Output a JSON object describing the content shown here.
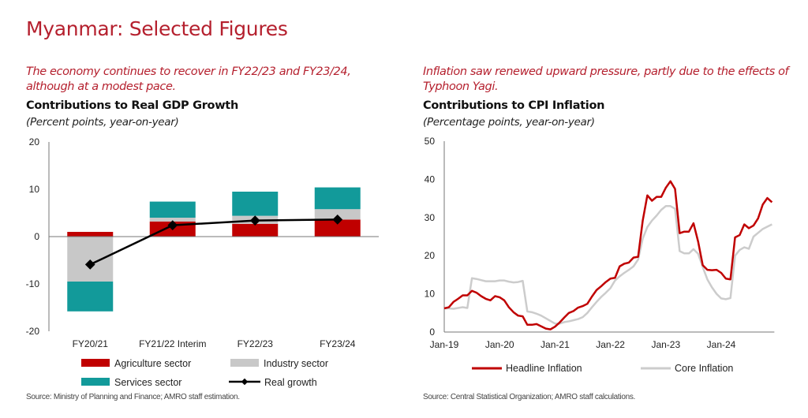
{
  "page": {
    "title": "Myanmar: Selected Figures",
    "left_lead": [
      "The economy continues to recover in FY22/23 and FY23/24,",
      "although at a modest pace."
    ],
    "right_lead": [
      "Inflation saw renewed upward pressure, partly due to the effects of",
      "Typhoon Yagi."
    ]
  },
  "colors": {
    "agriculture": "#c00000",
    "industry": "#c8c8c8",
    "services": "#129a9a",
    "real_growth": "#000000",
    "headline": "#c00000",
    "core": "#cccccc",
    "accent": "#b5202e"
  },
  "chart_data": [
    {
      "type": "bar",
      "stacked": true,
      "title": "Contributions to Real GDP Growth",
      "subtitle": "(Percent points, year-on-year)",
      "source": "Source: Ministry of Planning and Finance; AMRO staff estimation.",
      "categories": [
        "FY20/21",
        "FY21/22 Interim",
        "FY22/23",
        "FY23/24"
      ],
      "ylim": [
        -20,
        20
      ],
      "yticks": [
        20,
        10,
        0,
        -10,
        -20
      ],
      "grid": false,
      "legend_position": "bottom",
      "series": [
        {
          "name": "Agriculture sector",
          "type": "bar",
          "values": [
            1.0,
            3.2,
            2.7,
            3.6
          ]
        },
        {
          "name": "Industry sector",
          "type": "bar",
          "values": [
            -9.5,
            0.8,
            1.7,
            2.2
          ]
        },
        {
          "name": "Services sector",
          "type": "bar",
          "values": [
            -6.3,
            3.4,
            5.1,
            4.6
          ]
        },
        {
          "name": "Real growth",
          "type": "line",
          "values": [
            -5.9,
            2.4,
            3.4,
            3.6
          ]
        }
      ]
    },
    {
      "type": "line",
      "title": "Contributions to CPI Inflation",
      "subtitle": "(Percentage points, year-on-year)",
      "source": "Source: Central Statistical Organization; AMRO staff calculations.",
      "x_start": "Jan-19",
      "x_end": "Dec-24",
      "x_frequency": "monthly",
      "xticks": [
        "Jan-19",
        "Jan-20",
        "Jan-21",
        "Jan-22",
        "Jan-23",
        "Jan-24"
      ],
      "ylim": [
        0,
        50
      ],
      "yticks": [
        50,
        40,
        30,
        20,
        10,
        0
      ],
      "grid": false,
      "legend_position": "bottom",
      "series": [
        {
          "name": "Headline Inflation",
          "values": [
            6.2,
            6.5,
            7.9,
            8.7,
            9.6,
            9.6,
            10.8,
            10.3,
            9.4,
            8.7,
            8.3,
            9.4,
            9.1,
            8.3,
            6.5,
            5.2,
            4.3,
            4.1,
            1.9,
            1.9,
            2.1,
            1.5,
            0.9,
            0.7,
            1.4,
            2.5,
            3.8,
            5.0,
            5.5,
            6.4,
            6.8,
            7.4,
            9.3,
            11.0,
            12.0,
            13.1,
            14.0,
            14.2,
            17.2,
            17.9,
            18.2,
            19.5,
            19.7,
            29.2,
            35.8,
            34.4,
            35.4,
            35.4,
            37.8,
            39.5,
            37.5,
            25.9,
            26.3,
            26.3,
            28.5,
            23.7,
            17.5,
            16.3,
            16.2,
            16.3,
            15.5,
            14.0,
            13.8,
            24.8,
            25.4,
            28.2,
            27.2,
            27.9,
            29.8,
            33.4,
            35.1,
            34.0
          ]
        },
        {
          "name": "Core Inflation",
          "values": [
            6.2,
            6.2,
            6.1,
            6.3,
            6.5,
            6.3,
            14.1,
            13.9,
            13.6,
            13.3,
            13.3,
            13.3,
            13.5,
            13.5,
            13.2,
            13.0,
            13.1,
            13.4,
            5.4,
            5.2,
            4.8,
            4.3,
            3.6,
            2.9,
            2.2,
            2.2,
            2.6,
            2.8,
            3.1,
            3.4,
            3.9,
            5.0,
            6.5,
            7.9,
            9.2,
            10.3,
            11.5,
            13.5,
            14.6,
            15.5,
            16.3,
            17.2,
            19.0,
            24.5,
            27.5,
            29.2,
            30.5,
            32.0,
            33.0,
            33.0,
            32.3,
            21.2,
            20.6,
            20.6,
            21.7,
            20.5,
            17.0,
            13.8,
            11.7,
            10.0,
            8.8,
            8.6,
            8.9,
            20.0,
            21.5,
            22.2,
            21.8,
            25.0,
            26.0,
            27.0,
            27.6,
            28.2
          ]
        }
      ]
    }
  ]
}
